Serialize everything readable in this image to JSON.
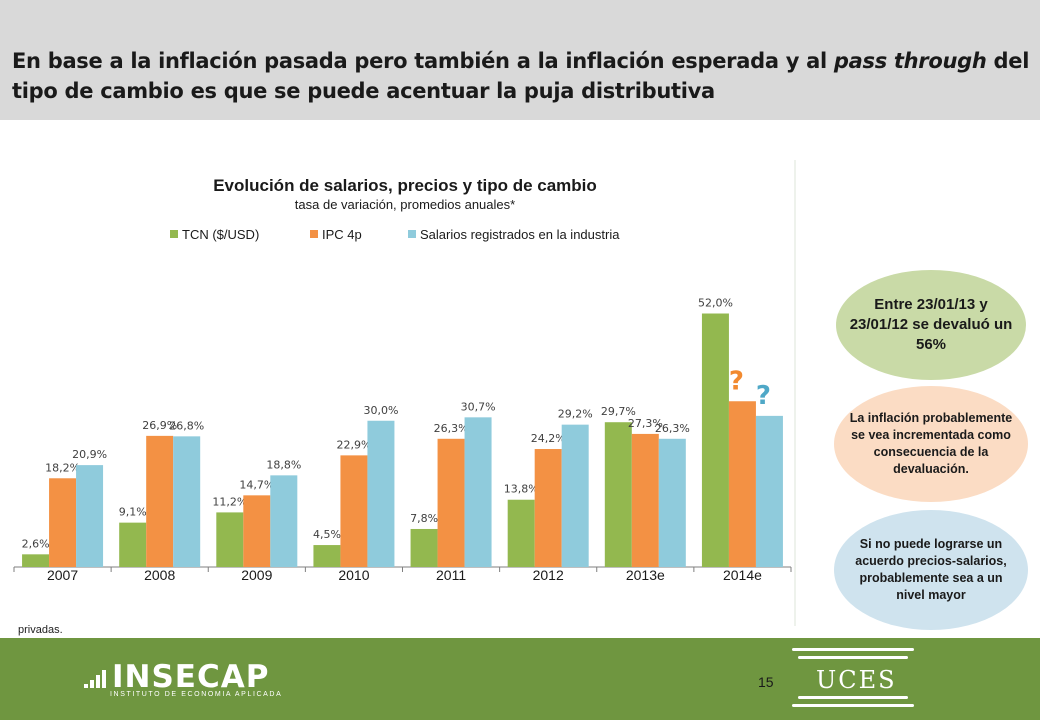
{
  "header": {
    "title_part1": "En base a la inflación pasada pero también a la inflación esperada y al ",
    "title_italic": "pass through",
    "title_part2": " del tipo de cambio es que se puede acentuar la puja distributiva"
  },
  "colors": {
    "header_bg": "#d9d9d9",
    "footer_bg": "#6f9640",
    "tcn": "#93b84f",
    "ipc": "#f39144",
    "salarios": "#8fcbdc",
    "question_orange": "#f28a30",
    "question_blue": "#4fa8c7"
  },
  "chart_data": {
    "type": "bar",
    "title": "Evolución de salarios, precios y tipo de cambio",
    "subtitle": "tasa de variación, promedios anuales*",
    "categories": [
      "2007",
      "2008",
      "2009",
      "2010",
      "2011",
      "2012",
      "2013e",
      "2014e"
    ],
    "series": [
      {
        "name": "TCN ($/USD)",
        "values": [
          2.6,
          9.1,
          11.2,
          4.5,
          7.8,
          13.8,
          29.7,
          52.0
        ],
        "labels": [
          "2,6%",
          "9,1%",
          "11,2%",
          "4,5%",
          "7,8%",
          "13,8%",
          "29,7%",
          "52,0%"
        ]
      },
      {
        "name": "IPC 4p",
        "values": [
          18.2,
          26.9,
          14.7,
          22.9,
          26.3,
          24.2,
          27.3,
          34.0
        ],
        "labels": [
          "18,2%",
          "26,9%",
          "14,7%",
          "22,9%",
          "26,3%",
          "24,2%",
          "27,3%",
          "?"
        ]
      },
      {
        "name": "Salarios registrados en la industria",
        "values": [
          20.9,
          26.8,
          18.8,
          30.0,
          30.7,
          29.2,
          26.3,
          31.0
        ],
        "labels": [
          "20,9%",
          "26,8%",
          "18,8%",
          "30,0%",
          "30,7%",
          "29,2%",
          "26,3%",
          "?"
        ]
      }
    ],
    "ylim": [
      0,
      56
    ],
    "legend_position": "top",
    "grid": false
  },
  "bubbles": {
    "devaluation": "Entre 23/01/13 y 23/01/12 se devaluó un 56%",
    "inflation": "La inflación probablemente se vea incrementada como consecuencia de la devaluación.",
    "agreement": "Si no puede lograrse un acuerdo precios-salarios, probablemente sea a un nivel mayor"
  },
  "footer": {
    "note": "privadas.",
    "page_number": "15",
    "logo_insecap": "INSECAP",
    "logo_insecap_sub": "INSTITUTO DE ECONOMIA APLICADA",
    "logo_uces": "UCES"
  }
}
